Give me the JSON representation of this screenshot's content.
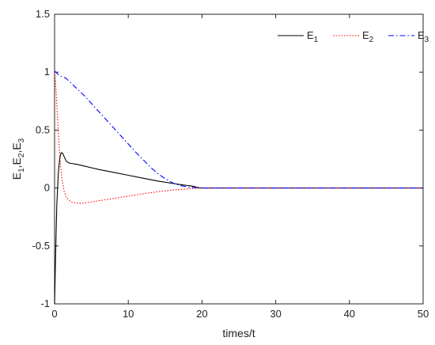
{
  "chart_data": {
    "type": "line",
    "xlabel": "times/t",
    "ylabel": "E1,E2,E3",
    "xlim": [
      0,
      50
    ],
    "ylim": [
      -1,
      1.5
    ],
    "xticks": [
      "0",
      "10",
      "20",
      "30",
      "40",
      "50"
    ],
    "yticks": [
      "-1",
      "-0.5",
      "0",
      "0.5",
      "1",
      "1.5"
    ],
    "grid": false,
    "legend_position": "top-right",
    "series": [
      {
        "name": "E1",
        "color": "#000000",
        "style": "solid",
        "x": [
          0,
          0.15,
          0.3,
          0.5,
          0.7,
          0.9,
          1.1,
          1.3,
          1.6,
          2,
          2.5,
          3,
          4,
          5,
          6,
          8,
          10,
          12,
          14,
          16,
          17,
          18,
          18.5,
          19,
          19.3,
          19.6,
          20,
          22,
          25,
          30,
          35,
          40,
          45,
          50
        ],
        "values": [
          -1,
          -0.55,
          -0.15,
          0.12,
          0.26,
          0.305,
          0.3,
          0.27,
          0.23,
          0.215,
          0.21,
          0.205,
          0.19,
          0.175,
          0.16,
          0.135,
          0.11,
          0.085,
          0.06,
          0.04,
          0.03,
          0.022,
          0.018,
          0.012,
          0.006,
          0.002,
          0,
          0,
          0,
          0,
          0,
          0,
          0,
          0
        ]
      },
      {
        "name": "E2",
        "color": "#ff0000",
        "style": "dotted",
        "x": [
          0,
          0.2,
          0.4,
          0.6,
          0.8,
          1,
          1.3,
          1.6,
          2,
          2.5,
          3,
          3.5,
          4,
          5,
          6,
          8,
          10,
          12,
          14,
          16,
          18,
          19,
          20,
          22,
          25,
          30,
          35,
          40,
          45,
          50
        ],
        "values": [
          1,
          0.85,
          0.6,
          0.38,
          0.2,
          0.08,
          -0.03,
          -0.08,
          -0.11,
          -0.125,
          -0.13,
          -0.132,
          -0.13,
          -0.12,
          -0.11,
          -0.09,
          -0.07,
          -0.05,
          -0.032,
          -0.018,
          -0.008,
          -0.003,
          0,
          0,
          0,
          0,
          0,
          0,
          0,
          0
        ]
      },
      {
        "name": "E3",
        "color": "#0000ff",
        "style": "dashdot",
        "x": [
          0,
          0.5,
          1,
          1.5,
          2,
          3,
          4,
          5,
          6,
          7,
          8,
          9,
          10,
          11,
          12,
          13,
          14,
          15,
          16,
          17,
          18,
          19,
          20,
          22,
          25,
          30,
          35,
          40,
          45,
          50
        ],
        "values": [
          1.01,
          0.98,
          0.96,
          0.95,
          0.92,
          0.86,
          0.8,
          0.73,
          0.66,
          0.59,
          0.52,
          0.45,
          0.38,
          0.31,
          0.245,
          0.18,
          0.125,
          0.08,
          0.045,
          0.022,
          0.01,
          0.004,
          0,
          0,
          0,
          0,
          0,
          0,
          0,
          0
        ]
      }
    ]
  }
}
